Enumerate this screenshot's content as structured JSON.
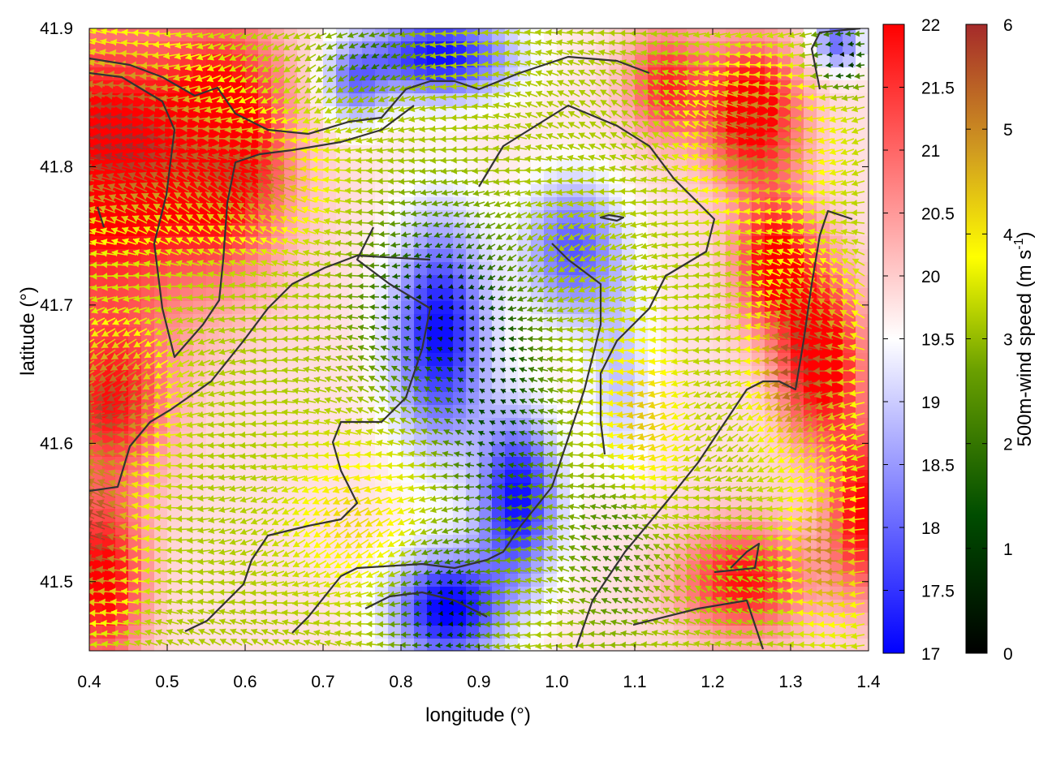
{
  "chart_data": {
    "type": "heatmap",
    "title": "",
    "xlabel": "longitude (°)",
    "ylabel": "latitude (°)",
    "xlim": [
      0.4,
      1.4
    ],
    "ylim": [
      41.45,
      41.9
    ],
    "x_ticks": [
      "0.4",
      "0.5",
      "0.6",
      "0.7",
      "0.8",
      "0.9",
      "1.0",
      "1.1",
      "1.2",
      "1.3",
      "1.4"
    ],
    "y_ticks": [
      "41.5",
      "41.6",
      "41.7",
      "41.8",
      "41.9"
    ],
    "grid": false,
    "temperature_colorbar": {
      "label": "",
      "range": [
        17,
        22
      ],
      "ticks": [
        "17",
        "17.5",
        "18",
        "18.5",
        "19",
        "19.5",
        "20",
        "20.5",
        "21",
        "21.5",
        "22"
      ],
      "colors": [
        "#0000ff",
        "#ffffff",
        "#ff0000"
      ]
    },
    "wind_colorbar": {
      "label": "500m-wind speed (m s",
      "label_superscript": "-1",
      "label_suffix": ")",
      "range": [
        0,
        6
      ],
      "ticks": [
        "0",
        "1",
        "2",
        "3",
        "4",
        "5",
        "6"
      ],
      "colors": [
        "#000000",
        "#006400",
        "#9acd00",
        "#ffff00",
        "#daa520",
        "#a52a2a"
      ]
    },
    "contour_color": "#333333",
    "arrow_direction": "mostly westward (easterly flow)"
  }
}
